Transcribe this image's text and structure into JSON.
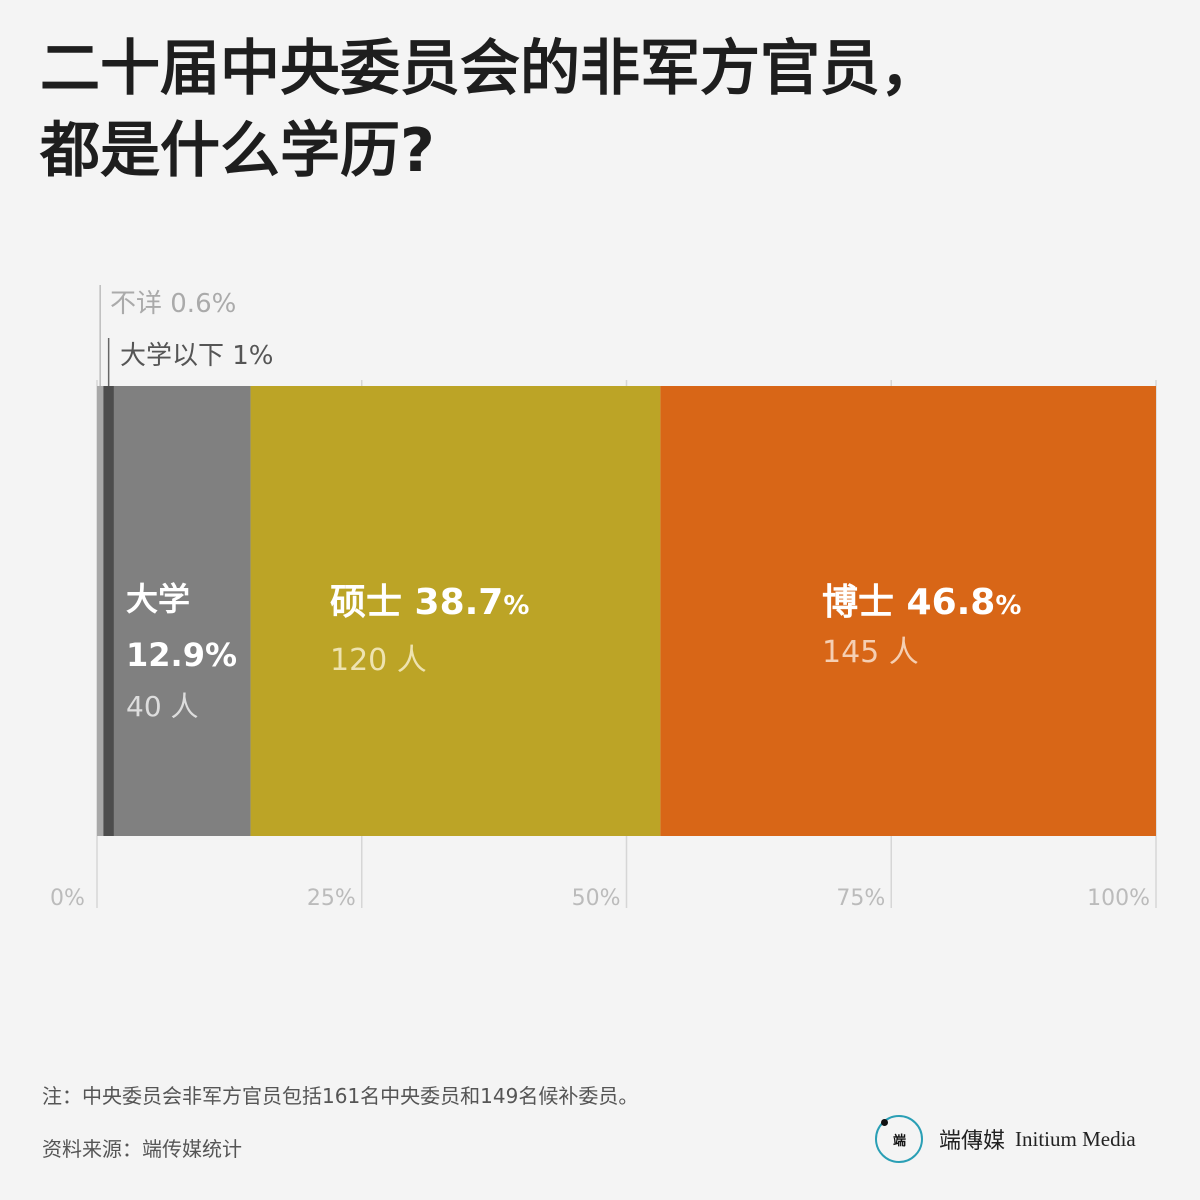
{
  "title": {
    "line1": "二十届中央委员会的非军方官员，",
    "line2": "都是什么学历?"
  },
  "chart_data": {
    "type": "bar",
    "orientation": "horizontal-stacked-100",
    "xlim": [
      0,
      100
    ],
    "ticks": [
      "0%",
      "25%",
      "50%",
      "75%",
      "100%"
    ],
    "segments": [
      {
        "name": "不详",
        "percent": 0.6,
        "percent_label": "0.6%",
        "color": "#a8a8a8"
      },
      {
        "name": "大学以下",
        "percent": 1,
        "percent_label": "1%",
        "color": "#4d4d4d"
      },
      {
        "name": "大学",
        "percent": 12.9,
        "percent_label": "12.9%",
        "count": 40,
        "count_label": "40 人",
        "color": "#808080"
      },
      {
        "name": "硕士",
        "percent": 38.7,
        "percent_label": "38.7",
        "count": 120,
        "count_label": "120 人",
        "color": "#bca426"
      },
      {
        "name": "博士",
        "percent": 46.8,
        "percent_label": "46.8",
        "count": 145,
        "count_label": "145 人",
        "color": "#d86617"
      }
    ],
    "percent_sign": "%",
    "callout_unknown": "不详 0.6%",
    "callout_below_univ": "大学以下 1%"
  },
  "footer": {
    "note": "注：中央委员会非军方官员包括161名中央委员和149名候补委员。",
    "source": "资料来源：端传媒统计",
    "brand_logo_text": "端",
    "brand_name_zh": "端傳媒",
    "brand_name_en": "Initium Media"
  }
}
